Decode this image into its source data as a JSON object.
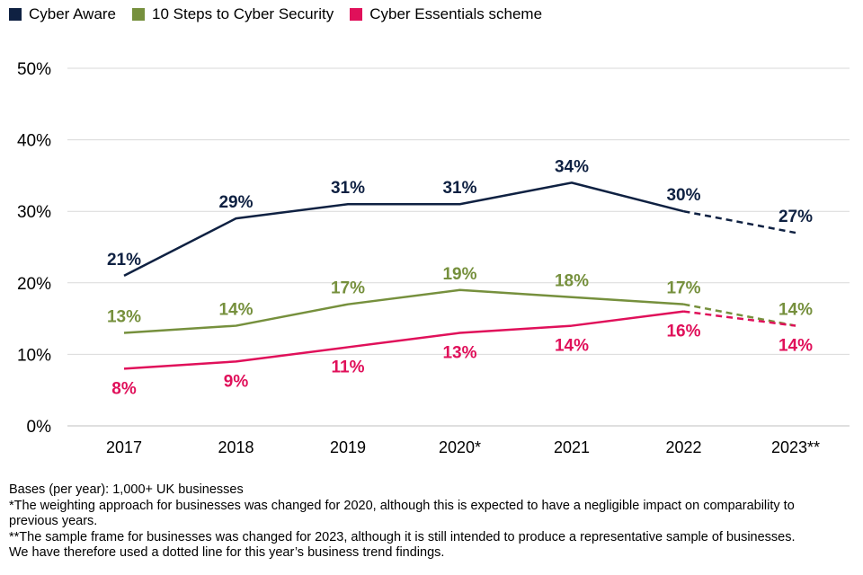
{
  "chart_data": {
    "type": "line",
    "categories": [
      "2017",
      "2018",
      "2019",
      "2020*",
      "2021",
      "2022",
      "2023**"
    ],
    "ylim": [
      0,
      50
    ],
    "yticks": [
      0,
      10,
      20,
      30,
      40,
      50
    ],
    "ytick_labels": [
      "0%",
      "10%",
      "20%",
      "30%",
      "40%",
      "50%"
    ],
    "dotted_from_index": 5,
    "series": [
      {
        "name": "Cyber Aware",
        "color": "#0f2142",
        "values": [
          21,
          29,
          31,
          31,
          34,
          30,
          27
        ],
        "labels": [
          "21%",
          "29%",
          "31%",
          "31%",
          "34%",
          "30%",
          "27%"
        ],
        "label_position": "above"
      },
      {
        "name": "10 Steps to Cyber Security",
        "color": "#76903d",
        "values": [
          13,
          14,
          17,
          19,
          18,
          17,
          14
        ],
        "labels": [
          "13%",
          "14%",
          "17%",
          "19%",
          "18%",
          "17%",
          "14%"
        ],
        "label_position": "above"
      },
      {
        "name": "Cyber Essentials scheme",
        "color": "#e0105a",
        "values": [
          8,
          9,
          11,
          13,
          14,
          16,
          14
        ],
        "labels": [
          "8%",
          "9%",
          "11%",
          "13%",
          "14%",
          "16%",
          "14%"
        ],
        "label_position": "below"
      }
    ],
    "grid": true,
    "legend": "top-left"
  },
  "notes": [
    "Bases (per year): 1,000+ UK businesses",
    "*The weighting approach for businesses was changed for 2020, although this is expected to have a negligible impact on comparability to previous years.",
    "**The sample frame for businesses was changed for 2023, although it is still intended to produce a representative sample of businesses. We have therefore used a dotted line for this year’s business trend findings."
  ]
}
